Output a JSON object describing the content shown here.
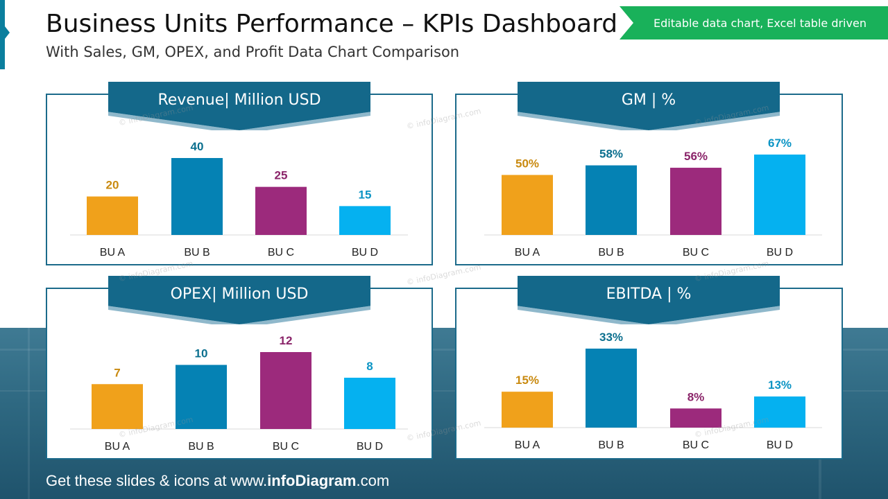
{
  "title": "Business Units Performance – KPIs Dashboard",
  "subtitle": "With Sales, GM, OPEX, and Profit Data Chart Comparison",
  "ribbon": "Editable data chart, Excel table driven",
  "footer": {
    "prefix": "Get these slides & icons at www.",
    "brand": "infoDiagram",
    "suffix": ".com"
  },
  "watermark": "© infoDiagram.com",
  "colors": {
    "bu_a": "#f0a11b",
    "bu_b": "#0582b4",
    "bu_c": "#9c2a7c",
    "bu_d": "#05b1f0"
  },
  "label_colors": {
    "bu_a": "#c98a10",
    "bu_b": "#0b6f8e",
    "bu_c": "#8a2469",
    "bu_d": "#0b94c4"
  },
  "chart_data": [
    {
      "type": "bar",
      "title": "Revenue| Million USD",
      "categories": [
        "BU A",
        "BU B",
        "BU C",
        "BU D"
      ],
      "values": [
        20,
        40,
        25,
        15
      ],
      "labels": [
        "20",
        "40",
        "25",
        "15"
      ],
      "ylim": [
        0,
        40
      ],
      "grid": false
    },
    {
      "type": "bar",
      "title": "GM | %",
      "categories": [
        "BU A",
        "BU B",
        "BU C",
        "BU D"
      ],
      "values": [
        50,
        58,
        56,
        67
      ],
      "labels": [
        "50%",
        "58%",
        "56%",
        "67%"
      ],
      "ylim": [
        0,
        67
      ],
      "grid": false
    },
    {
      "type": "bar",
      "title": "OPEX| Million USD",
      "categories": [
        "BU A",
        "BU B",
        "BU C",
        "BU D"
      ],
      "values": [
        7,
        10,
        12,
        8
      ],
      "labels": [
        "7",
        "10",
        "12",
        "8"
      ],
      "ylim": [
        0,
        12
      ],
      "grid": false
    },
    {
      "type": "bar",
      "title": "EBITDA | %",
      "categories": [
        "BU A",
        "BU B",
        "BU C",
        "BU D"
      ],
      "values": [
        15,
        33,
        8,
        13
      ],
      "labels": [
        "15%",
        "33%",
        "8%",
        "13%"
      ],
      "ylim": [
        0,
        33
      ],
      "grid": false
    }
  ]
}
